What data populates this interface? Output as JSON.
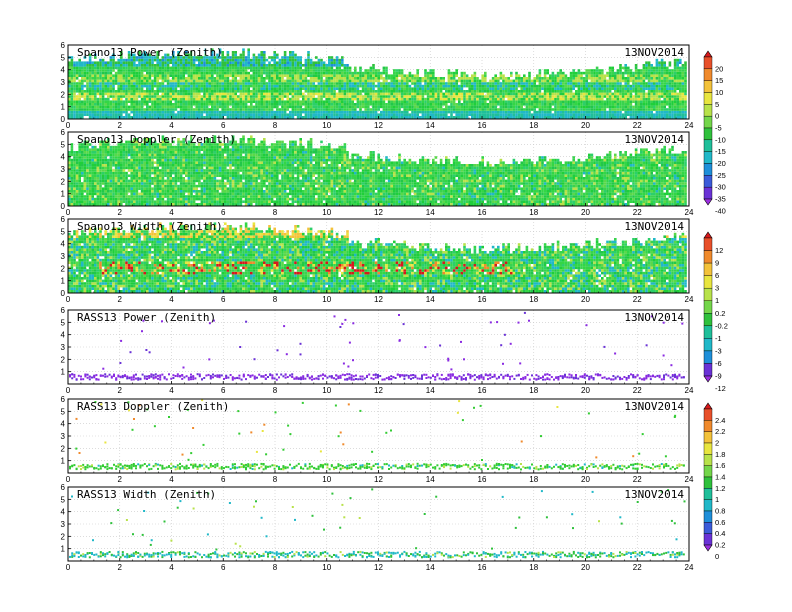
{
  "chart_data": [
    {
      "type": "heatmap",
      "title": "Spano13 Power (Zenith)",
      "date": "13NOV2014",
      "style": "dense",
      "variable": "power",
      "x_ticks": [
        "0",
        "2",
        "4",
        "6",
        "8",
        "10",
        "12",
        "14",
        "16",
        "18",
        "20",
        "22",
        "24"
      ],
      "y_ticks": [
        "0",
        "1",
        "2",
        "3",
        "4",
        "5",
        "6"
      ],
      "xlim": [
        0,
        24
      ],
      "ylim": [
        0,
        6
      ],
      "colorbar_group": 0,
      "bands": [
        {
          "y": 0.7,
          "color": "#ffffff"
        },
        {
          "y": 1.9,
          "color": "#e6dc45"
        },
        {
          "y": 3.5,
          "color": "#b6e24a"
        },
        {
          "y": 4.6,
          "color": "#2fc8d8"
        }
      ]
    },
    {
      "type": "heatmap",
      "title": "Spano13 Doppler (Zenith)",
      "date": "13NOV2014",
      "style": "dense",
      "variable": "doppler",
      "x_ticks": [
        "0",
        "2",
        "4",
        "6",
        "8",
        "10",
        "12",
        "14",
        "16",
        "18",
        "20",
        "22",
        "24"
      ],
      "y_ticks": [
        "0",
        "1",
        "2",
        "3",
        "4",
        "5",
        "6"
      ],
      "xlim": [
        0,
        24
      ],
      "ylim": [
        0,
        6
      ],
      "colorbar_group": 0
    },
    {
      "type": "heatmap",
      "title": "Spano13 Width (Zenith)",
      "date": "13NOV2014",
      "style": "dense",
      "variable": "width",
      "x_ticks": [
        "0",
        "2",
        "4",
        "6",
        "8",
        "10",
        "12",
        "14",
        "16",
        "18",
        "20",
        "22",
        "24"
      ],
      "y_ticks": [
        "0",
        "1",
        "2",
        "3",
        "4",
        "5",
        "6"
      ],
      "xlim": [
        0,
        24
      ],
      "ylim": [
        0,
        6
      ],
      "colorbar_group": 1,
      "red_band": {
        "y_range": [
          1.6,
          2.6
        ]
      }
    },
    {
      "type": "scatter",
      "title": "RASS13 Power (Zenith)",
      "date": "13NOV2014",
      "style": "sparse",
      "variable": "rass_power",
      "x_ticks": [
        "0",
        "2",
        "4",
        "6",
        "8",
        "10",
        "12",
        "14",
        "16",
        "18",
        "20",
        "22",
        "24"
      ],
      "y_ticks": [
        "1",
        "2",
        "3",
        "4",
        "5",
        "6"
      ],
      "xlim": [
        0,
        24
      ],
      "ylim": [
        0,
        6
      ],
      "colorbar_group": 1,
      "band_y": 0.65,
      "band_color": "#8a2be2"
    },
    {
      "type": "scatter",
      "title": "RASS13 Doppler (Zenith)",
      "date": "13NOV2014",
      "style": "sparse",
      "variable": "rass_doppler",
      "x_ticks": [
        "0",
        "2",
        "4",
        "6",
        "8",
        "10",
        "12",
        "14",
        "16",
        "18",
        "20",
        "22",
        "24"
      ],
      "y_ticks": [
        "1",
        "2",
        "3",
        "4",
        "5",
        "6"
      ],
      "xlim": [
        0,
        24
      ],
      "ylim": [
        0,
        6
      ],
      "colorbar_group": 2,
      "band_y": 0.6,
      "band_color": "#33cc33"
    },
    {
      "type": "scatter",
      "title": "RASS13 Width (Zenith)",
      "date": "13NOV2014",
      "style": "sparse",
      "variable": "rass_width",
      "x_ticks": [
        "0",
        "2",
        "4",
        "6",
        "8",
        "10",
        "12",
        "14",
        "16",
        "18",
        "20",
        "22",
        "24"
      ],
      "y_ticks": [
        "1",
        "2",
        "3",
        "4",
        "5",
        "6"
      ],
      "xlim": [
        0,
        24
      ],
      "ylim": [
        0,
        6
      ],
      "colorbar_group": 2,
      "band_y": 0.6,
      "band_color": "#20b8c8"
    }
  ],
  "colorbars": [
    {
      "labels": [
        "20",
        "15",
        "10",
        "5",
        "0",
        "-5",
        "-10",
        "-15",
        "-20",
        "-25",
        "-30",
        "-35",
        "-40"
      ],
      "colors": [
        "#d7191c",
        "#e8502a",
        "#f08a2c",
        "#f3c23a",
        "#e8e53f",
        "#b8e24a",
        "#74d64a",
        "#2fc13c",
        "#1fbf9a",
        "#20b8c8",
        "#1e8fd9",
        "#3b5bd9",
        "#6a32d6",
        "#9b2ee0"
      ]
    },
    {
      "labels": [
        "12",
        "9",
        "6",
        "3",
        "1",
        "0.2",
        "-0.2",
        "-1",
        "-3",
        "-6",
        "-9",
        "-12"
      ],
      "colors": [
        "#d7191c",
        "#e8502a",
        "#f08a2c",
        "#f3c23a",
        "#e8e53f",
        "#b8e24a",
        "#74d64a",
        "#2fc13c",
        "#1fbf9a",
        "#20b8c8",
        "#1e8fd9",
        "#6a32d6",
        "#9b2ee0"
      ]
    },
    {
      "labels": [
        "2.4",
        "2.2",
        "2",
        "1.8",
        "1.6",
        "1.4",
        "1.2",
        "1",
        "0.8",
        "0.6",
        "0.4",
        "0.2",
        "0"
      ],
      "colors": [
        "#d7191c",
        "#e8502a",
        "#f08a2c",
        "#f3c23a",
        "#e8e53f",
        "#b8e24a",
        "#74d64a",
        "#2fc13c",
        "#1fbf9a",
        "#20b8c8",
        "#1e8fd9",
        "#3b5bd9",
        "#6a32d6",
        "#9b2ee0"
      ]
    }
  ]
}
